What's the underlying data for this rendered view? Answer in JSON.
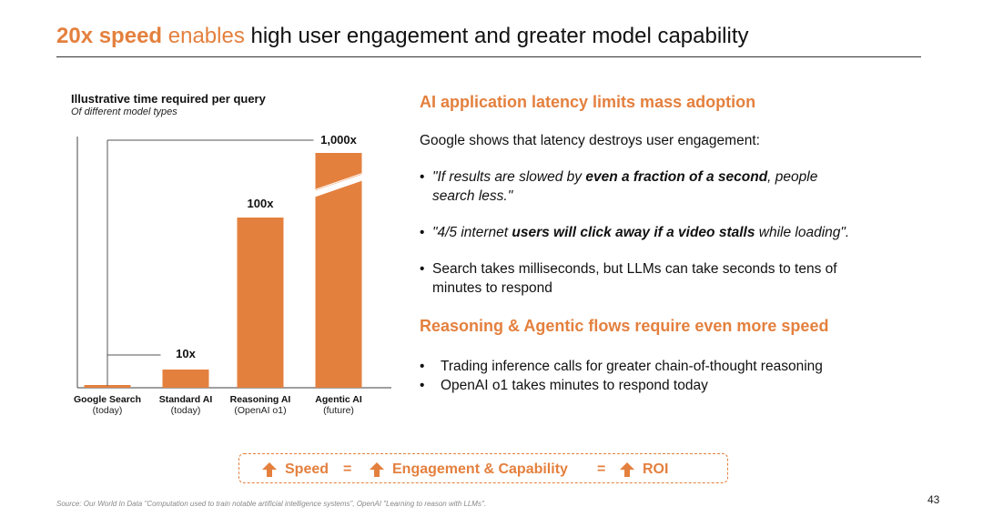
{
  "title": {
    "part1": "20x speed",
    "part2": " enables",
    "part3": " high user engagement and greater model capability"
  },
  "chart_data": {
    "type": "bar",
    "title": "Illustrative time required per query",
    "subtitle": "Of different model types",
    "categories": [
      "Google Search",
      "Standard AI",
      "Reasoning AI",
      "Agentic AI"
    ],
    "category_sublabels": [
      "(today)",
      "(today)",
      "(OpenAI o1)",
      "(future)"
    ],
    "values": [
      1,
      10,
      100,
      1000
    ],
    "data_labels": [
      "",
      "10x",
      "100x",
      "1,000x"
    ],
    "axis_break_on": "Agentic AI",
    "ylabel": "",
    "xlabel": "",
    "bar_color": "#E4803E",
    "scale": "log"
  },
  "right": {
    "heading1": "AI application latency limits mass adoption",
    "intro": "Google shows that latency destroys user engagement:",
    "bullet_char": "•",
    "bullet1": {
      "a": "\"If results are slowed by ",
      "b": "even a fraction of a second",
      "c": ", people",
      "d": "search less.\""
    },
    "bullet2": {
      "a": "\"4/5 internet ",
      "b": "users will click away if a video stalls",
      "c": " while loading\"."
    },
    "bullet3": {
      "line1": "Search takes milliseconds, but LLMs can take seconds to tens of",
      "line2": "minutes to respond"
    },
    "heading2": "Reasoning & Agentic flows require even more speed",
    "bullets2": [
      "Trading inference calls for greater chain-of-thought reasoning",
      "OpenAI o1 takes minutes to respond today"
    ]
  },
  "formula": {
    "item1": "Speed",
    "eq": "=",
    "item2": "Engagement & Capability",
    "item3": "ROI",
    "icon": "up-arrow-icon"
  },
  "footer": {
    "source": "Source: Our World In Data \"Computation used to train notable artificial intelligence systems\", OpenAI \"Learning to reason with LLMs\".",
    "page": "43"
  }
}
